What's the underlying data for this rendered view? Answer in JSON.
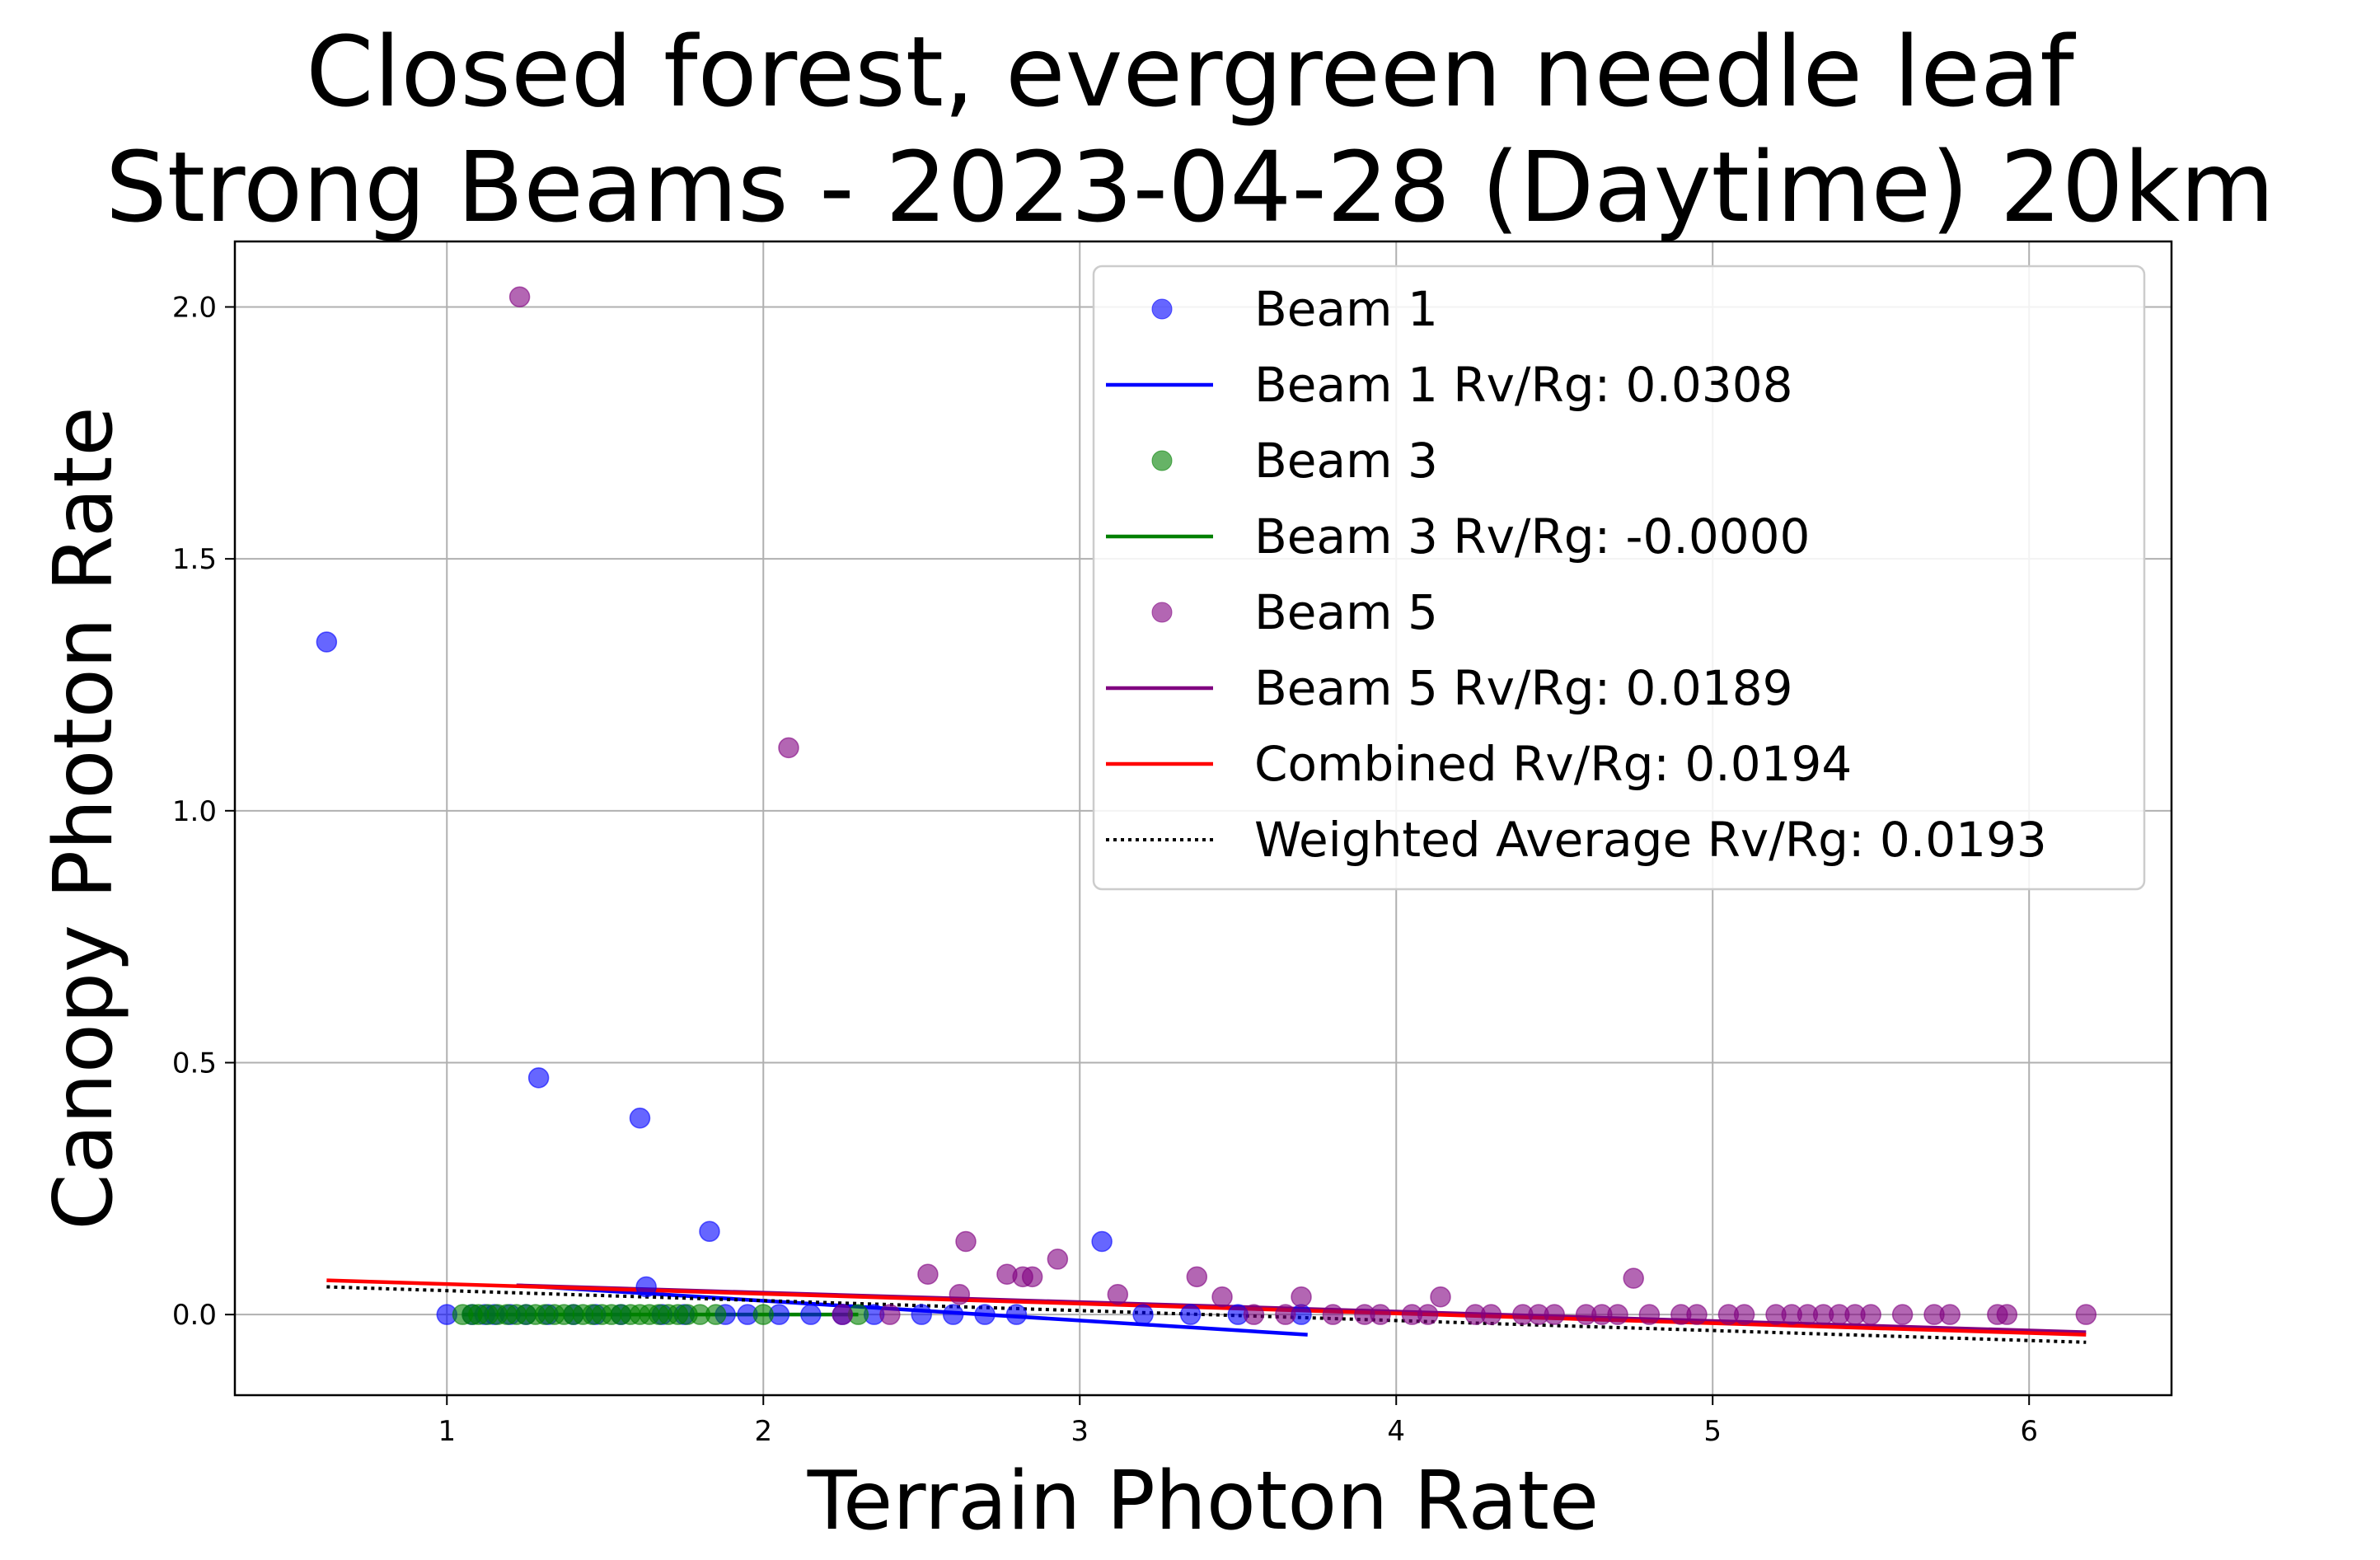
{
  "chart_data": {
    "type": "scatter",
    "title_lines": [
      "Closed forest, evergreen needle leaf",
      "Strong Beams - 2023-04-28 (Daytime) 20km"
    ],
    "xlabel": "Terrain Photon Rate",
    "ylabel": "Canopy Photon Rate",
    "xlim": [
      0.33,
      6.45
    ],
    "ylim": [
      -0.16,
      2.13
    ],
    "x_ticks": [
      1,
      2,
      3,
      4,
      5,
      6
    ],
    "y_ticks": [
      0.0,
      0.5,
      1.0,
      1.5,
      2.0
    ],
    "x_tick_labels": [
      "1",
      "2",
      "3",
      "4",
      "5",
      "6"
    ],
    "y_tick_labels": [
      "0.0",
      "0.5",
      "1.0",
      "1.5",
      "2.0"
    ],
    "grid": true,
    "legend_position": "upper-right",
    "series": [
      {
        "name": "Beam 1",
        "kind": "scatter",
        "color": "#0000ff",
        "points": [
          [
            0.62,
            1.335
          ],
          [
            1.0,
            0.0
          ],
          [
            1.08,
            0.0
          ],
          [
            1.12,
            0.0
          ],
          [
            1.15,
            0.0
          ],
          [
            1.2,
            0.0
          ],
          [
            1.25,
            0.0
          ],
          [
            1.29,
            0.47
          ],
          [
            1.32,
            0.0
          ],
          [
            1.4,
            0.0
          ],
          [
            1.47,
            0.0
          ],
          [
            1.55,
            0.0
          ],
          [
            1.61,
            0.39
          ],
          [
            1.63,
            0.055
          ],
          [
            1.68,
            0.0
          ],
          [
            1.75,
            0.0
          ],
          [
            1.83,
            0.165
          ],
          [
            1.88,
            0.0
          ],
          [
            1.95,
            0.0
          ],
          [
            2.05,
            0.0
          ],
          [
            2.15,
            0.0
          ],
          [
            2.25,
            0.0
          ],
          [
            2.35,
            0.0
          ],
          [
            2.5,
            0.0
          ],
          [
            2.6,
            0.0
          ],
          [
            2.7,
            0.0
          ],
          [
            2.8,
            0.0
          ],
          [
            3.07,
            0.145
          ],
          [
            3.2,
            0.0
          ],
          [
            3.35,
            0.0
          ],
          [
            3.5,
            0.0
          ],
          [
            3.7,
            0.0
          ]
        ]
      },
      {
        "name": "Beam 1 Rv/Rg: 0.0308",
        "kind": "line",
        "color": "#0000ff",
        "from": [
          1.22,
          0.058
        ],
        "to": [
          3.72,
          -0.04
        ]
      },
      {
        "name": "Beam 3",
        "kind": "scatter",
        "color": "#008000",
        "points": [
          [
            1.05,
            0.0
          ],
          [
            1.08,
            0.0
          ],
          [
            1.1,
            0.0
          ],
          [
            1.13,
            0.0
          ],
          [
            1.16,
            0.0
          ],
          [
            1.19,
            0.0
          ],
          [
            1.22,
            0.0
          ],
          [
            1.25,
            0.0
          ],
          [
            1.28,
            0.0
          ],
          [
            1.31,
            0.0
          ],
          [
            1.34,
            0.0
          ],
          [
            1.37,
            0.0
          ],
          [
            1.4,
            0.0
          ],
          [
            1.43,
            0.0
          ],
          [
            1.46,
            0.0
          ],
          [
            1.49,
            0.0
          ],
          [
            1.52,
            0.0
          ],
          [
            1.55,
            0.0
          ],
          [
            1.58,
            0.0
          ],
          [
            1.61,
            0.0
          ],
          [
            1.64,
            0.0
          ],
          [
            1.67,
            0.0
          ],
          [
            1.7,
            0.0
          ],
          [
            1.73,
            0.0
          ],
          [
            1.76,
            0.0
          ],
          [
            1.8,
            0.0
          ],
          [
            1.85,
            0.0
          ],
          [
            2.0,
            0.0
          ],
          [
            2.3,
            0.0
          ]
        ]
      },
      {
        "name": "Beam 3 Rv/Rg: -0.0000",
        "kind": "line",
        "color": "#008000",
        "from": [
          1.05,
          0.0
        ],
        "to": [
          2.3,
          0.0
        ]
      },
      {
        "name": "Beam 5",
        "kind": "scatter",
        "color": "#800080",
        "points": [
          [
            1.23,
            2.02
          ],
          [
            2.08,
            1.125
          ],
          [
            2.25,
            0.0
          ],
          [
            2.4,
            0.0
          ],
          [
            2.52,
            0.08
          ],
          [
            2.62,
            0.04
          ],
          [
            2.64,
            0.145
          ],
          [
            2.77,
            0.08
          ],
          [
            2.82,
            0.075
          ],
          [
            2.85,
            0.075
          ],
          [
            2.93,
            0.11
          ],
          [
            3.12,
            0.04
          ],
          [
            3.37,
            0.075
          ],
          [
            3.45,
            0.035
          ],
          [
            3.7,
            0.035
          ],
          [
            3.55,
            0.0
          ],
          [
            3.65,
            0.0
          ],
          [
            3.8,
            0.0
          ],
          [
            3.9,
            0.0
          ],
          [
            3.95,
            0.0
          ],
          [
            4.05,
            0.0
          ],
          [
            4.1,
            0.0
          ],
          [
            4.14,
            0.035
          ],
          [
            4.25,
            0.0
          ],
          [
            4.3,
            0.0
          ],
          [
            4.4,
            0.0
          ],
          [
            4.45,
            0.0
          ],
          [
            4.5,
            0.0
          ],
          [
            4.6,
            0.0
          ],
          [
            4.65,
            0.0
          ],
          [
            4.7,
            0.0
          ],
          [
            4.75,
            0.072
          ],
          [
            4.8,
            0.0
          ],
          [
            4.9,
            0.0
          ],
          [
            4.95,
            0.0
          ],
          [
            5.05,
            0.0
          ],
          [
            5.1,
            0.0
          ],
          [
            5.2,
            0.0
          ],
          [
            5.25,
            0.0
          ],
          [
            5.3,
            0.0
          ],
          [
            5.35,
            0.0
          ],
          [
            5.4,
            0.0
          ],
          [
            5.45,
            0.0
          ],
          [
            5.5,
            0.0
          ],
          [
            5.6,
            0.0
          ],
          [
            5.7,
            0.0
          ],
          [
            5.75,
            0.0
          ],
          [
            5.9,
            0.0
          ],
          [
            5.93,
            0.0
          ],
          [
            6.18,
            0.0
          ]
        ]
      },
      {
        "name": "Beam 5 Rv/Rg: 0.0189",
        "kind": "line",
        "color": "#800080",
        "from": [
          1.22,
          0.058
        ],
        "to": [
          6.18,
          -0.035
        ]
      },
      {
        "name": "Combined Rv/Rg: 0.0194",
        "kind": "line",
        "color": "#ff0000",
        "from": [
          0.62,
          0.068
        ],
        "to": [
          6.18,
          -0.04
        ]
      },
      {
        "name": "Weighted Average Rv/Rg: 0.0193",
        "kind": "dotted-line",
        "color": "#000000",
        "from": [
          0.62,
          0.055
        ],
        "to": [
          6.18,
          -0.055
        ]
      }
    ]
  }
}
